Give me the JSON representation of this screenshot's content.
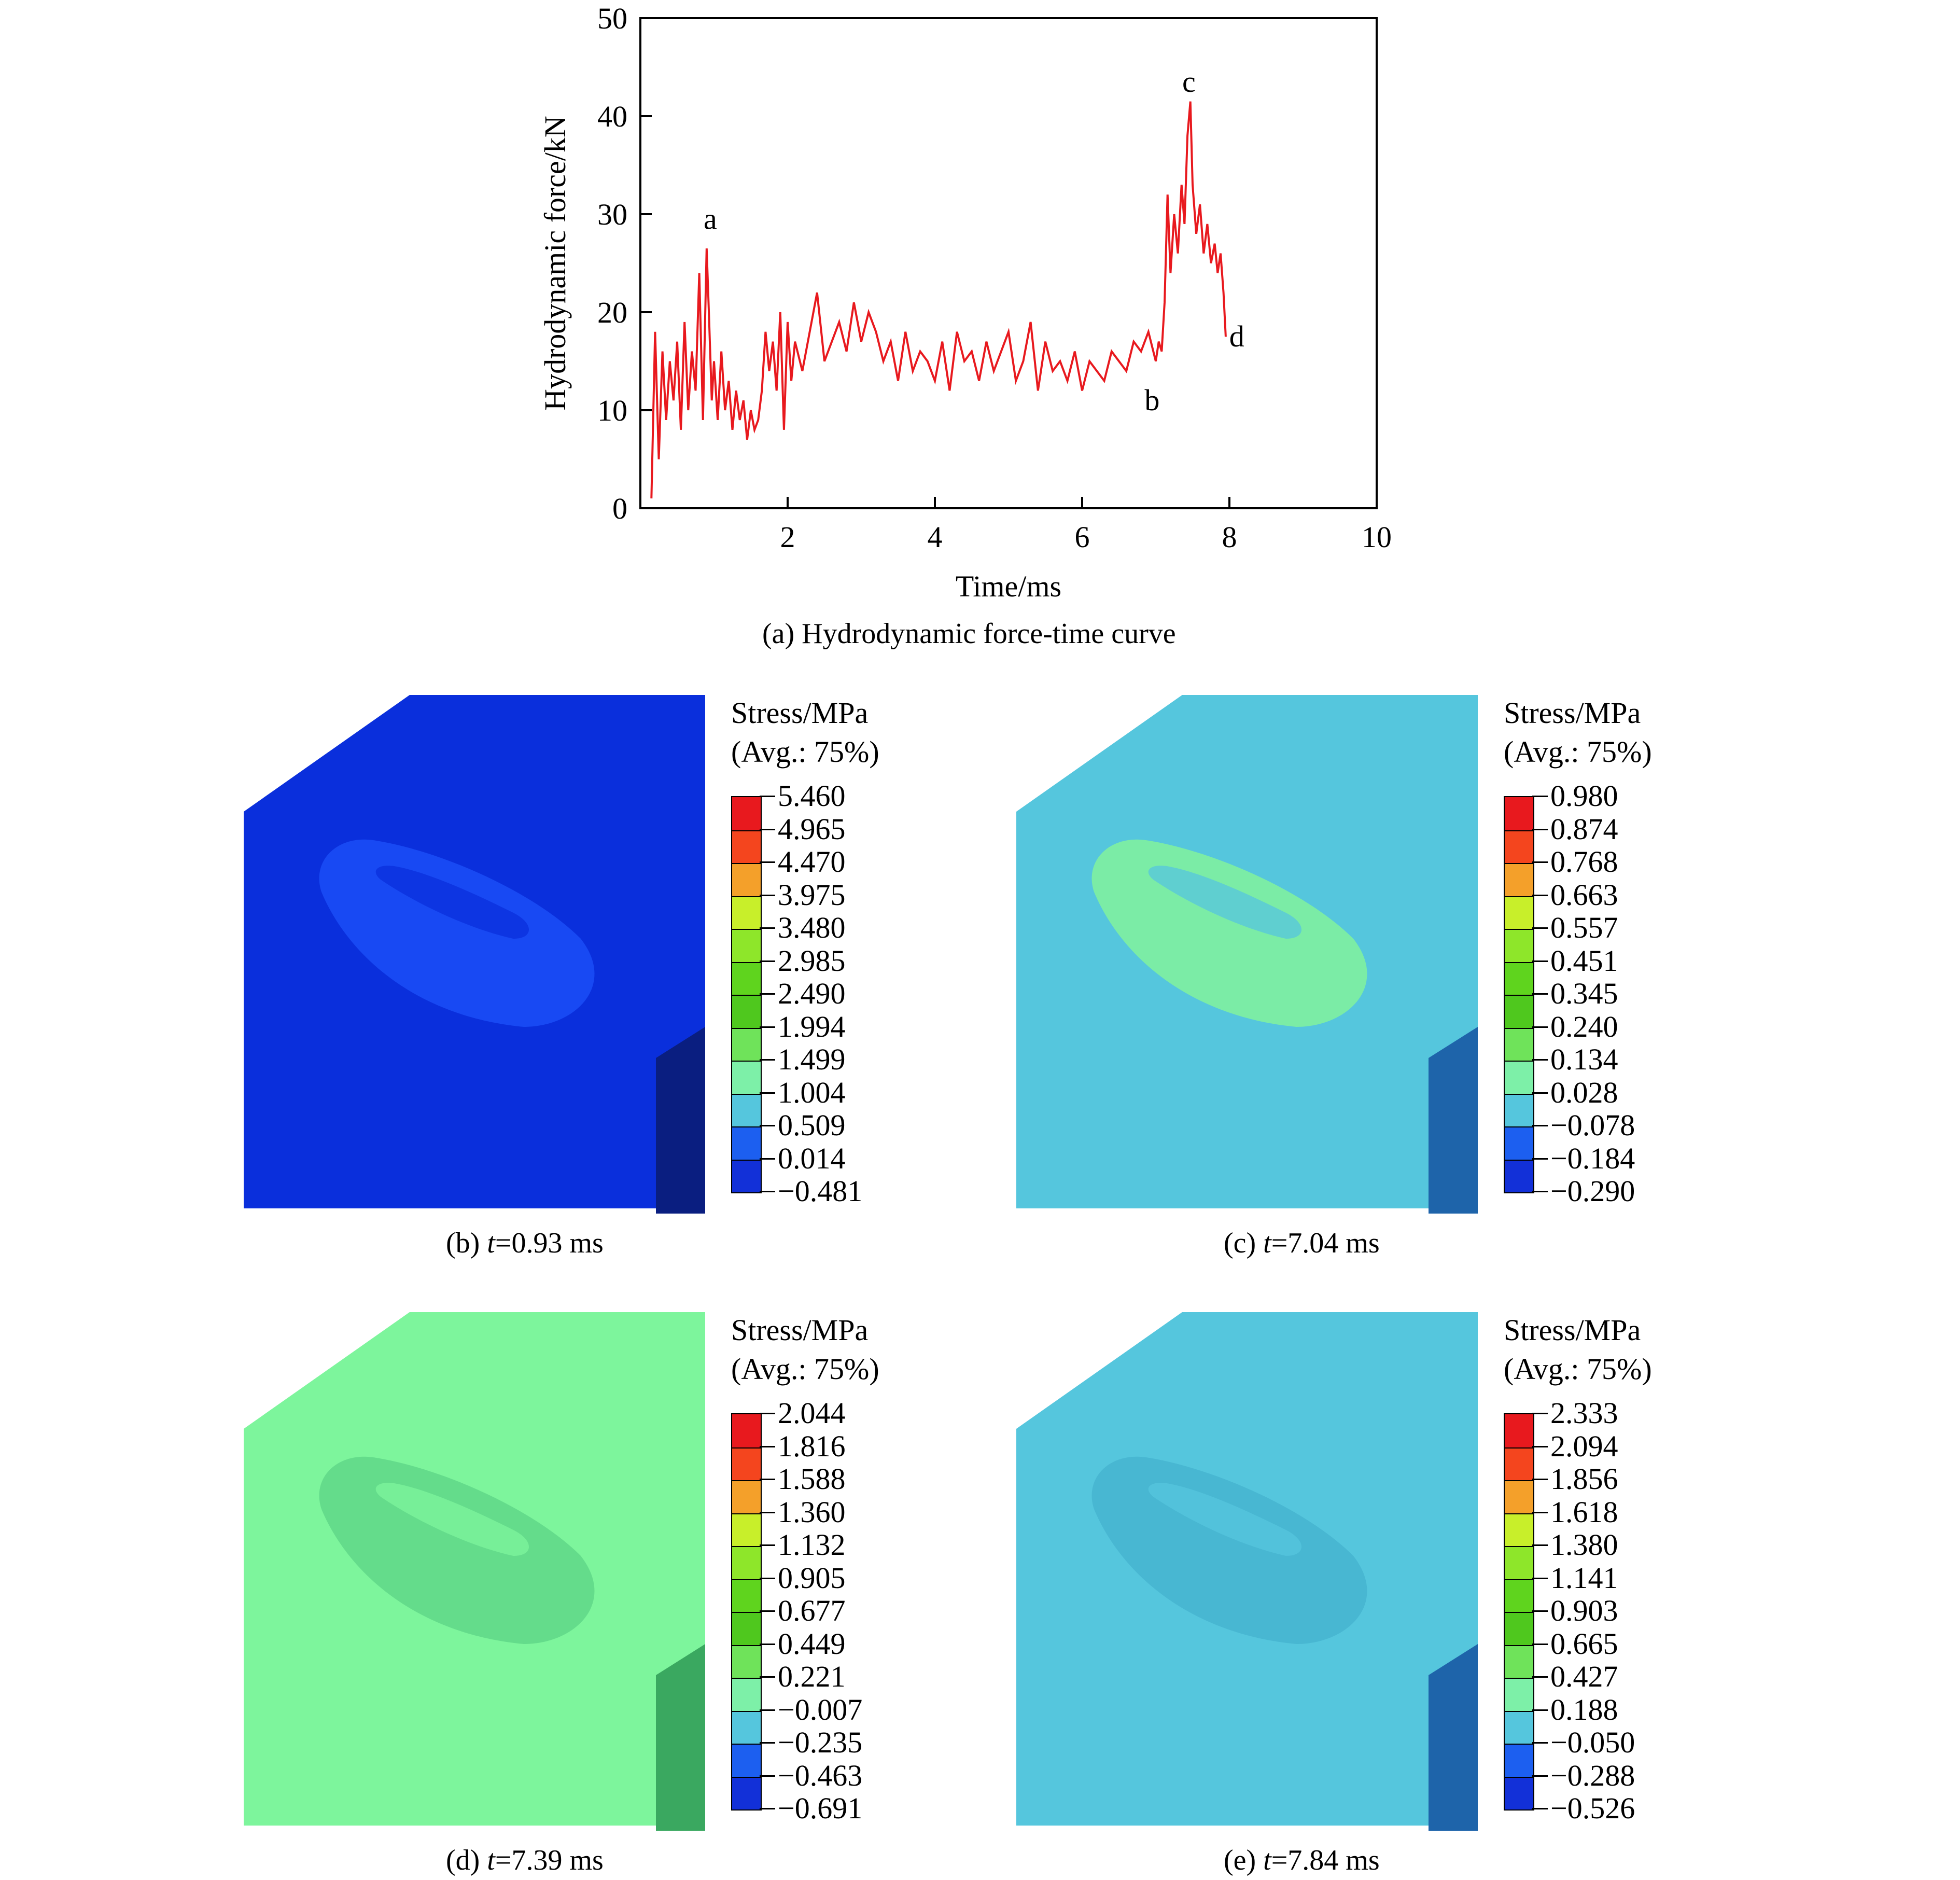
{
  "chart_data": {
    "type": "line",
    "title": "(a) Hydrodynamic force-time curve",
    "xlabel": "Time/ms",
    "ylabel": "Hydrodynamic force/kN",
    "xlim": [
      0,
      10
    ],
    "ylim": [
      0,
      50
    ],
    "xticks": [
      2,
      4,
      6,
      8,
      10
    ],
    "yticks": [
      0,
      10,
      20,
      30,
      40,
      50
    ],
    "line_color": "#e8191e",
    "series": [
      {
        "name": "Hydrodynamic force",
        "x": [
          0.15,
          0.2,
          0.25,
          0.3,
          0.35,
          0.4,
          0.45,
          0.5,
          0.55,
          0.6,
          0.65,
          0.7,
          0.75,
          0.8,
          0.85,
          0.9,
          0.93,
          0.97,
          1.0,
          1.05,
          1.1,
          1.15,
          1.2,
          1.25,
          1.3,
          1.35,
          1.4,
          1.45,
          1.5,
          1.55,
          1.6,
          1.65,
          1.7,
          1.75,
          1.8,
          1.85,
          1.9,
          1.95,
          2.0,
          2.05,
          2.1,
          2.2,
          2.3,
          2.4,
          2.5,
          2.6,
          2.7,
          2.8,
          2.9,
          3.0,
          3.1,
          3.2,
          3.3,
          3.4,
          3.5,
          3.6,
          3.7,
          3.8,
          3.9,
          4.0,
          4.1,
          4.2,
          4.3,
          4.4,
          4.5,
          4.6,
          4.7,
          4.8,
          4.9,
          5.0,
          5.1,
          5.2,
          5.3,
          5.4,
          5.5,
          5.6,
          5.7,
          5.8,
          5.9,
          6.0,
          6.1,
          6.2,
          6.3,
          6.4,
          6.5,
          6.6,
          6.7,
          6.8,
          6.9,
          7.0,
          7.04,
          7.08,
          7.12,
          7.16,
          7.2,
          7.25,
          7.3,
          7.35,
          7.39,
          7.43,
          7.47,
          7.5,
          7.55,
          7.6,
          7.65,
          7.7,
          7.75,
          7.8,
          7.84,
          7.88,
          7.92,
          7.95
        ],
        "y": [
          1,
          18,
          5,
          16,
          9,
          15,
          11,
          17,
          8,
          19,
          10,
          16,
          12,
          24,
          9,
          26.5,
          20,
          11,
          15,
          9,
          16,
          10,
          13,
          8,
          12,
          9,
          11,
          7,
          10,
          8,
          9,
          12,
          18,
          14,
          17,
          12,
          20,
          8,
          19,
          13,
          17,
          14,
          18,
          22,
          15,
          17,
          19,
          16,
          21,
          17,
          20,
          18,
          15,
          17,
          13,
          18,
          14,
          16,
          15,
          13,
          17,
          12,
          18,
          15,
          16,
          13,
          17,
          14,
          16,
          18,
          13,
          15,
          19,
          12,
          17,
          14,
          15,
          13,
          16,
          12,
          15,
          14,
          13,
          16,
          15,
          14,
          17,
          16,
          18,
          15,
          17,
          16,
          21,
          32,
          24,
          30,
          26,
          33,
          29,
          38,
          41.5,
          33,
          28,
          31,
          26,
          29,
          25,
          27,
          24,
          26,
          22,
          17.5
        ]
      }
    ],
    "annotations": [
      {
        "text": "a",
        "x": 0.95,
        "y": 28.5
      },
      {
        "text": "b",
        "x": 6.95,
        "y": 10
      },
      {
        "text": "c",
        "x": 7.45,
        "y": 42.5
      },
      {
        "text": "d",
        "x": 8.1,
        "y": 16.5
      }
    ]
  },
  "panels": [
    {
      "caption_prefix": "(b) ",
      "caption_var": "t",
      "caption_value": "=0.93 ms",
      "legend_title": "Stress/MPa",
      "legend_subtitle": "(Avg.: 75%)",
      "labels": [
        "5.460",
        "4.965",
        "4.470",
        "3.975",
        "3.480",
        "2.985",
        "2.490",
        "1.994",
        "1.499",
        "1.004",
        "0.509",
        "0.014",
        "−0.481"
      ],
      "base_color": "#0a2fdc",
      "side_color": "#0a1e80",
      "region_color": "#1a4cf5"
    },
    {
      "caption_prefix": "(c) ",
      "caption_var": "t",
      "caption_value": "=7.04 ms",
      "legend_title": "Stress/MPa",
      "legend_subtitle": "(Avg.: 75%)",
      "labels": [
        "0.980",
        "0.874",
        "0.768",
        "0.663",
        "0.557",
        "0.451",
        "0.345",
        "0.240",
        "0.134",
        "0.028",
        "−0.078",
        "−0.184",
        "−0.290"
      ],
      "base_color": "#55c6dd",
      "side_color": "#1e64aa",
      "region_color": "#7ff0a0"
    },
    {
      "caption_prefix": "(d) ",
      "caption_var": "t",
      "caption_value": "=7.39 ms",
      "legend_title": "Stress/MPa",
      "legend_subtitle": "(Avg.: 75%)",
      "labels": [
        "2.044",
        "1.816",
        "1.588",
        "1.360",
        "1.132",
        "0.905",
        "0.677",
        "0.449",
        "0.221",
        "−0.007",
        "−0.235",
        "−0.463",
        "−0.691"
      ],
      "base_color": "#7df59c",
      "side_color": "#3aa860",
      "region_color": "#62d98a"
    },
    {
      "caption_prefix": "(e) ",
      "caption_var": "t",
      "caption_value": "=7.84 ms",
      "legend_title": "Stress/MPa",
      "legend_subtitle": "(Avg.: 75%)",
      "labels": [
        "2.333",
        "2.094",
        "1.856",
        "1.618",
        "1.380",
        "1.141",
        "0.903",
        "0.665",
        "0.427",
        "0.188",
        "−0.050",
        "−0.288",
        "−0.526"
      ],
      "base_color": "#55c6dd",
      "side_color": "#1e64aa",
      "region_color": "#47b5d0"
    }
  ],
  "legend_colors": [
    "#e8191e",
    "#f4451e",
    "#f4a02a",
    "#c8ef2a",
    "#8ee62a",
    "#5fd41e",
    "#4fc81e",
    "#6fe35a",
    "#7df0a8",
    "#55c6dd",
    "#1c5ff0",
    "#1230d8",
    "#0a1ec2"
  ]
}
